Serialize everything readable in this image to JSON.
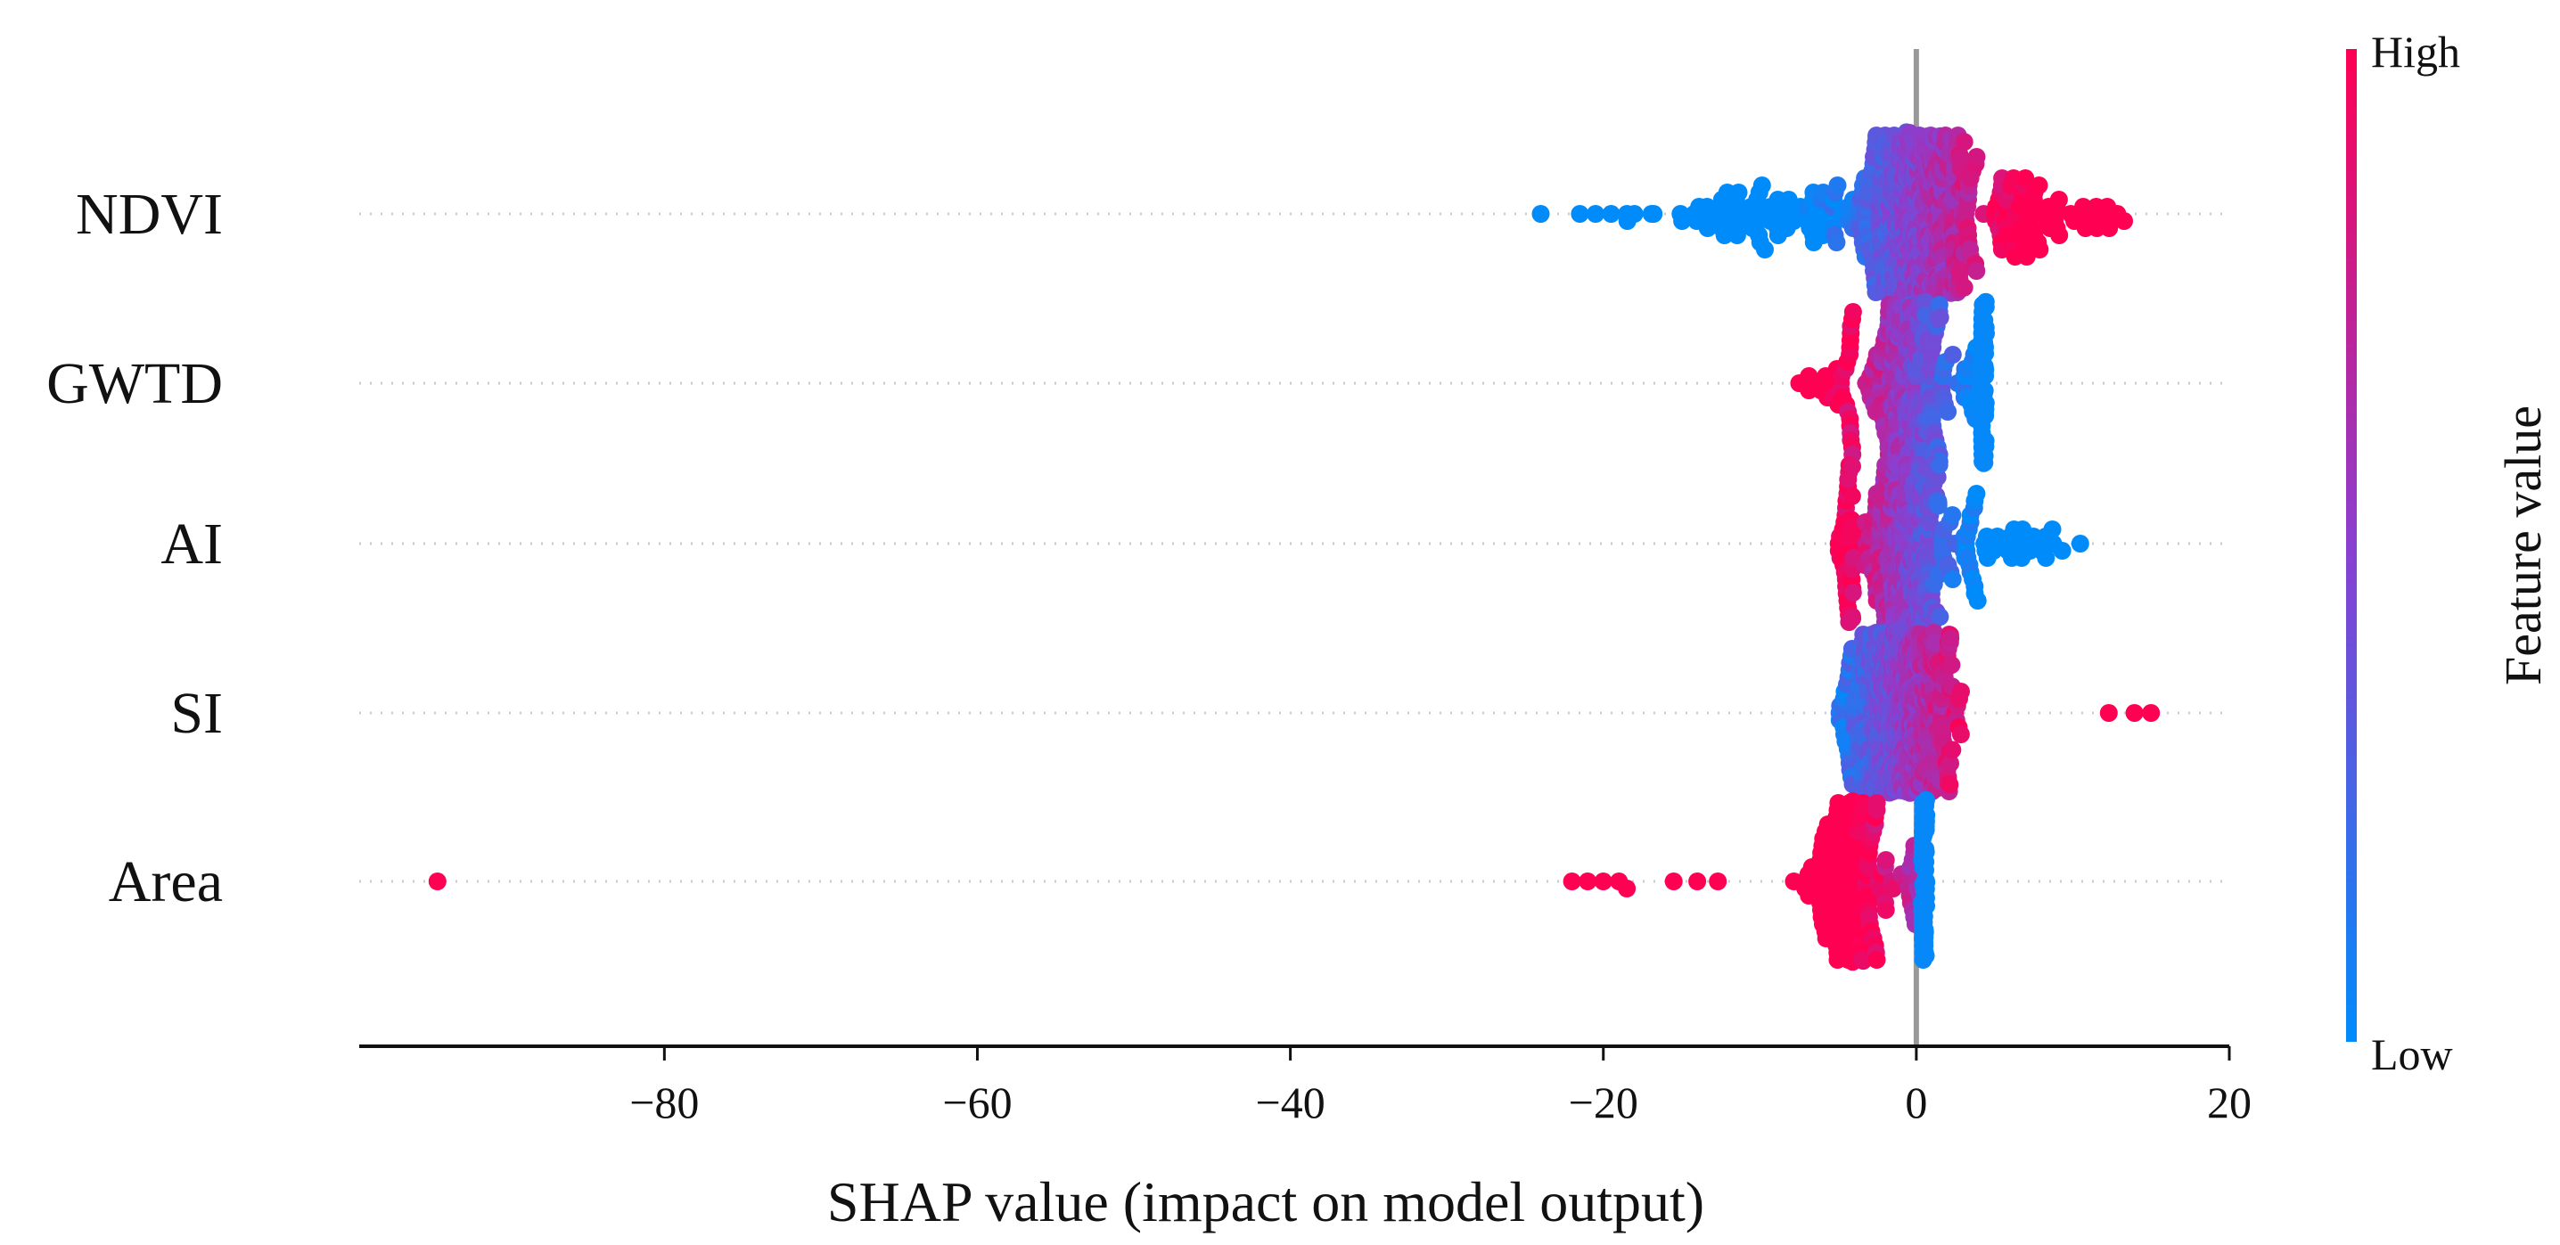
{
  "chart_data": {
    "type": "scatter",
    "subtype": "shap-beeswarm",
    "title": "",
    "xlabel": "SHAP value (impact on model output)",
    "ylabel": "",
    "xlim": [
      -99.5,
      20
    ],
    "xticks": [
      -80,
      -60,
      -40,
      -20,
      0,
      20
    ],
    "xtick_labels": [
      "−80",
      "−60",
      "−40",
      "−20",
      "0",
      "20"
    ],
    "grid": false,
    "colorbar": {
      "label": "Feature value",
      "high_label": "High",
      "low_label": "Low",
      "low_color": "#008bfb",
      "mid_color": "#8a3fd0",
      "high_color": "#ff0052"
    },
    "features": [
      {
        "name": "NDVI",
        "min": -24,
        "max": 14.3,
        "core": [
          -5,
          5
        ],
        "direction": "high_positive",
        "n": 700,
        "outliers": [
          -24,
          -21.5,
          -20.5,
          -19.5
        ]
      },
      {
        "name": "GWTD",
        "min": -8,
        "max": 4.5,
        "core": [
          -4,
          3
        ],
        "direction": "low_positive",
        "n": 300,
        "stack": {
          "x": 4.3,
          "n": 60,
          "feature_value": 0.02
        },
        "outliers": []
      },
      {
        "name": "AI",
        "min": -5.2,
        "max": 11.8,
        "core": [
          -4,
          3
        ],
        "direction": "low_positive",
        "n": 420,
        "outliers": []
      },
      {
        "name": "SI",
        "min": -5.2,
        "max": 15,
        "core": [
          -5,
          3
        ],
        "direction": "high_positive",
        "n": 650,
        "outliers": [
          15,
          12.3
        ]
      },
      {
        "name": "Area",
        "min": -94.5,
        "max": 0.6,
        "core": [
          -8,
          -0.5
        ],
        "direction": "high_negative",
        "n": 160,
        "stack": {
          "x": 0.5,
          "n": 70,
          "feature_value": 0.02
        },
        "outliers": [
          -94.5,
          -22,
          -21,
          -20,
          -19,
          -18.5,
          -15.5,
          -14
        ]
      }
    ]
  }
}
